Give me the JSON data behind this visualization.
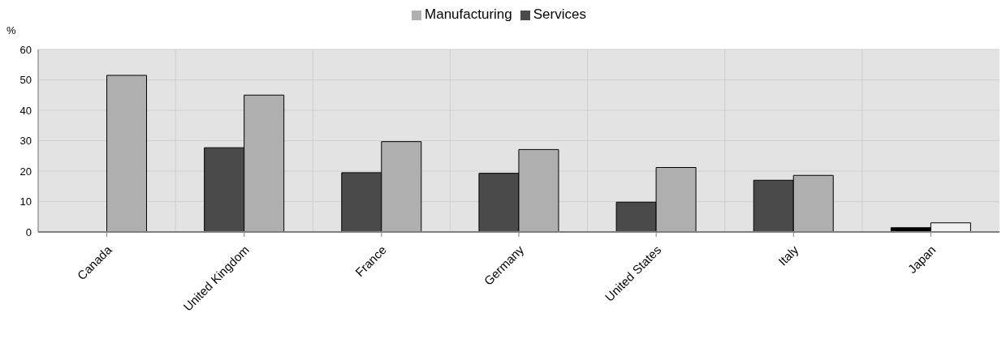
{
  "chart_data": {
    "type": "bar",
    "ylabel": "%",
    "categories": [
      "Canada",
      "United Kingdom",
      "France",
      "Germany",
      "United States",
      "Italy",
      "Japan"
    ],
    "series": [
      {
        "name": "Services",
        "color": "#4a4a4a",
        "colors": [
          "#4a4a4a",
          "#4a4a4a",
          "#4a4a4a",
          "#4a4a4a",
          "#4a4a4a",
          "#4a4a4a",
          "#000000"
        ],
        "values": [
          null,
          27.7,
          19.5,
          19.3,
          9.8,
          17.0,
          1.4
        ]
      },
      {
        "name": "Manufacturing",
        "color": "#afafaf",
        "colors": [
          "#afafaf",
          "#afafaf",
          "#afafaf",
          "#afafaf",
          "#afafaf",
          "#afafaf",
          "#f0f0f0"
        ],
        "values": [
          51.5,
          45.0,
          29.7,
          27.1,
          21.2,
          18.6,
          3.0
        ]
      }
    ],
    "ylim": [
      0,
      60
    ],
    "yticks": [
      0,
      10,
      20,
      30,
      40,
      50,
      60
    ],
    "grid": true,
    "legend": "top"
  }
}
